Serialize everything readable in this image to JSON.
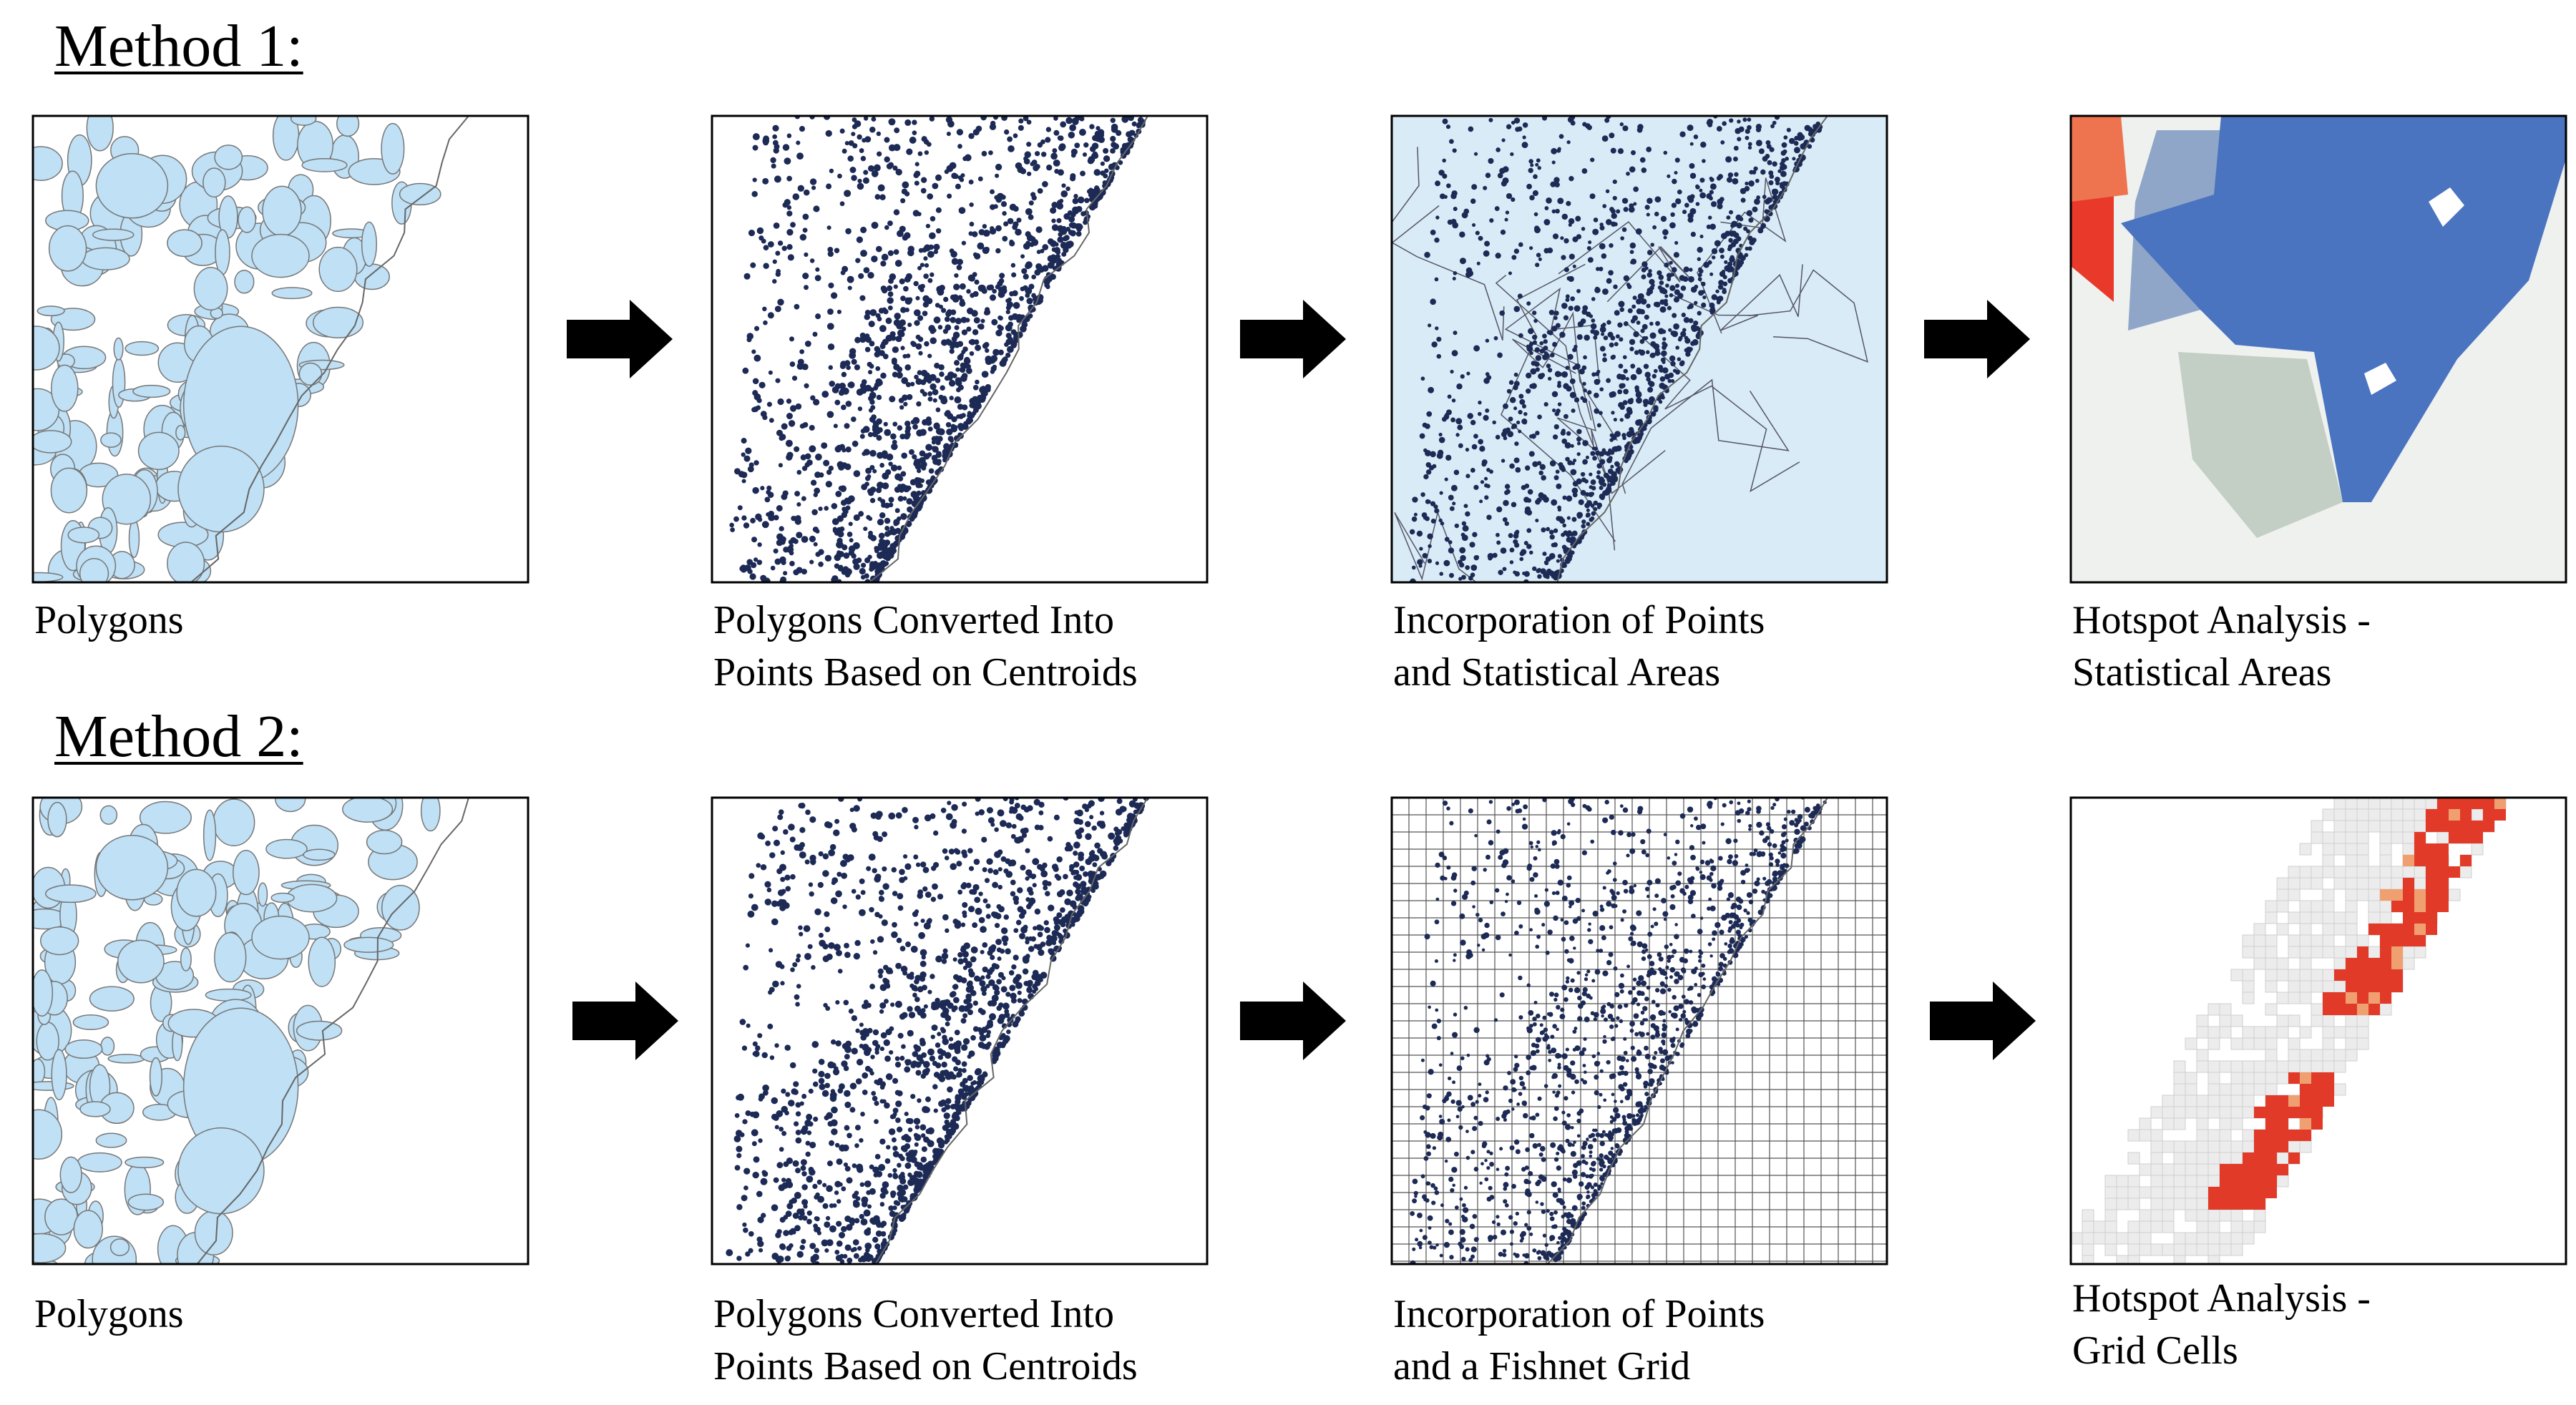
{
  "methods": [
    {
      "title": "Method 1:",
      "panels": [
        {
          "caption": [
            "Polygons"
          ]
        },
        {
          "caption": [
            "Polygons Converted Into",
            "Points Based on Centroids"
          ]
        },
        {
          "caption": [
            "Incorporation of Points",
            "and Statistical Areas"
          ]
        },
        {
          "caption": [
            "Hotspot Analysis -",
            "Statistical Areas"
          ]
        }
      ]
    },
    {
      "title": "Method 2:",
      "panels": [
        {
          "caption": [
            "Polygons"
          ]
        },
        {
          "caption": [
            "Polygons Converted Into",
            "Points Based on Centroids"
          ]
        },
        {
          "caption": [
            "Incorporation of Points",
            "and a Fishnet Grid"
          ]
        },
        {
          "caption": [
            "Hotspot Analysis -",
            "Grid Cells"
          ]
        }
      ]
    }
  ]
}
